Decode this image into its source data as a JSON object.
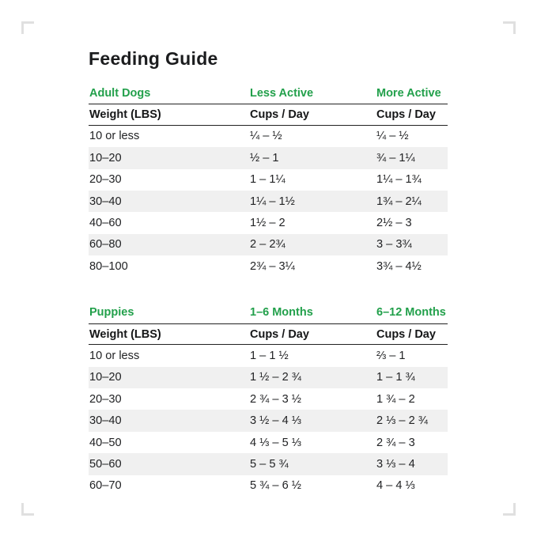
{
  "page": {
    "title": "Feeding Guide"
  },
  "colors": {
    "accent_green": "#22a04b",
    "stripe": "#f0f0f0",
    "rule": "#222222"
  },
  "tables": [
    {
      "name": "Adult Dogs",
      "section": {
        "col1": "Adult Dogs",
        "col2": "Less Active",
        "col3": "More Active"
      },
      "headers": {
        "col1": "Weight (LBS)",
        "col2": "Cups / Day",
        "col3": "Cups / Day"
      },
      "rows": [
        {
          "c1": "10 or less",
          "c2": "¼ – ½",
          "c3": "¼ – ½"
        },
        {
          "c1": "10–20",
          "c2": "½ – 1",
          "c3": "¾ – 1¼"
        },
        {
          "c1": "20–30",
          "c2": "1 – 1¼",
          "c3": "1¼ – 1¾"
        },
        {
          "c1": "30–40",
          "c2": "1¼ – 1½",
          "c3": "1¾ – 2¼"
        },
        {
          "c1": "40–60",
          "c2": "1½ – 2",
          "c3": "2½ – 3"
        },
        {
          "c1": "60–80",
          "c2": "2 – 2¾",
          "c3": "3 – 3¾"
        },
        {
          "c1": "80–100",
          "c2": "2¾ – 3¼",
          "c3": "3¾ – 4½"
        }
      ]
    },
    {
      "name": "Puppies",
      "section": {
        "col1": "Puppies",
        "col2": "1–6 Months",
        "col3": "6–12 Months"
      },
      "headers": {
        "col1": "Weight (LBS)",
        "col2": "Cups / Day",
        "col3": "Cups / Day"
      },
      "rows": [
        {
          "c1": "10 or less",
          "c2": "1 – 1 ½",
          "c3": "⅔ – 1"
        },
        {
          "c1": "10–20",
          "c2": "1 ½ – 2 ¾",
          "c3": "1 – 1 ¾"
        },
        {
          "c1": "20–30",
          "c2": "2 ¾ – 3 ½",
          "c3": "1 ¾ – 2"
        },
        {
          "c1": "30–40",
          "c2": "3 ½ – 4 ⅓",
          "c3": "2 ⅓ – 2 ¾"
        },
        {
          "c1": "40–50",
          "c2": "4 ⅓ – 5 ⅓",
          "c3": "2 ¾ – 3"
        },
        {
          "c1": "50–60",
          "c2": "5 – 5 ¾",
          "c3": "3 ⅓ – 4"
        },
        {
          "c1": "60–70",
          "c2": "5 ¾ – 6 ½",
          "c3": "4 – 4 ⅓"
        }
      ]
    }
  ],
  "chart_data": {
    "type": "table",
    "title": "Feeding Guide",
    "tables": [
      {
        "columns": [
          "Weight (LBS)",
          "Less Active Cups / Day",
          "More Active Cups / Day"
        ],
        "rows": [
          [
            "10 or less",
            "¼ – ½",
            "¼ – ½"
          ],
          [
            "10–20",
            "½ – 1",
            "¾ – 1¼"
          ],
          [
            "20–30",
            "1 – 1¼",
            "1¼ – 1¾"
          ],
          [
            "30–40",
            "1¼ – 1½",
            "1¾ – 2¼"
          ],
          [
            "40–60",
            "1½ – 2",
            "2½ – 3"
          ],
          [
            "60–80",
            "2 – 2¾",
            "3 – 3¾"
          ],
          [
            "80–100",
            "2¾ – 3¼",
            "3¾ – 4½"
          ]
        ]
      },
      {
        "columns": [
          "Weight (LBS)",
          "1–6 Months Cups / Day",
          "6–12 Months Cups / Day"
        ],
        "rows": [
          [
            "10 or less",
            "1 – 1 ½",
            "⅔ – 1"
          ],
          [
            "10–20",
            "1 ½ – 2 ¾",
            "1 – 1 ¾"
          ],
          [
            "20–30",
            "2 ¾ – 3 ½",
            "1 ¾ – 2"
          ],
          [
            "30–40",
            "3 ½ – 4 ⅓",
            "2 ⅓ – 2 ¾"
          ],
          [
            "40–50",
            "4 ⅓ – 5 ⅓",
            "2 ¾ – 3"
          ],
          [
            "50–60",
            "5 – 5 ¾",
            "3 ⅓ – 4"
          ],
          [
            "60–70",
            "5 ¾ – 6 ½",
            "4 – 4 ⅓"
          ]
        ]
      }
    ]
  }
}
